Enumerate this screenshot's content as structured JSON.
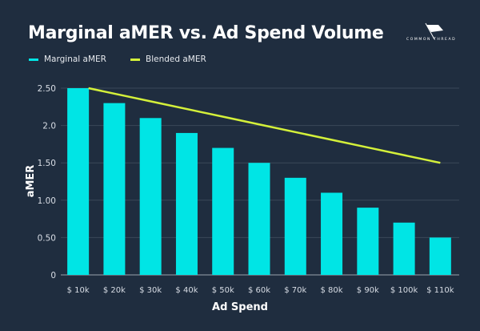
{
  "brand": {
    "name": "COMMON THREAD",
    "icon": "flag-icon"
  },
  "colors": {
    "background": "#1f2d3f",
    "bars": "#00e5e5",
    "line": "#d4f03a",
    "grid": "#3a4859",
    "axis": "#9aa3ae"
  },
  "chart_data": {
    "type": "bar",
    "title": "Marginal aMER vs. Ad Spend Volume",
    "xlabel": "Ad Spend",
    "ylabel": "aMER",
    "categories": [
      "$ 10k",
      "$ 20k",
      "$ 30k",
      "$ 40k",
      "$ 50k",
      "$ 60k",
      "$ 70k",
      "$ 80k",
      "$ 90k",
      "$ 100k",
      "$ 110k"
    ],
    "series": [
      {
        "name": "Marginal aMER",
        "type": "bar",
        "color": "#00e5e5",
        "values": [
          2.5,
          2.3,
          2.1,
          1.9,
          1.7,
          1.5,
          1.3,
          1.1,
          0.9,
          0.7,
          0.5
        ]
      },
      {
        "name": "Blended aMER",
        "type": "line",
        "color": "#d4f03a",
        "values": [
          2.5,
          2.4,
          2.3,
          2.2,
          2.1,
          2.0,
          1.9,
          1.8,
          1.7,
          1.6,
          1.5
        ]
      }
    ],
    "yticks": [
      0,
      0.5,
      1.0,
      1.5,
      2.0,
      2.5
    ],
    "ytick_labels": [
      "0",
      "0.50",
      "1.00",
      "1.50",
      "2.0",
      "2.50"
    ],
    "ylim": [
      0,
      2.5
    ],
    "grid": true,
    "legend": "top-left"
  }
}
